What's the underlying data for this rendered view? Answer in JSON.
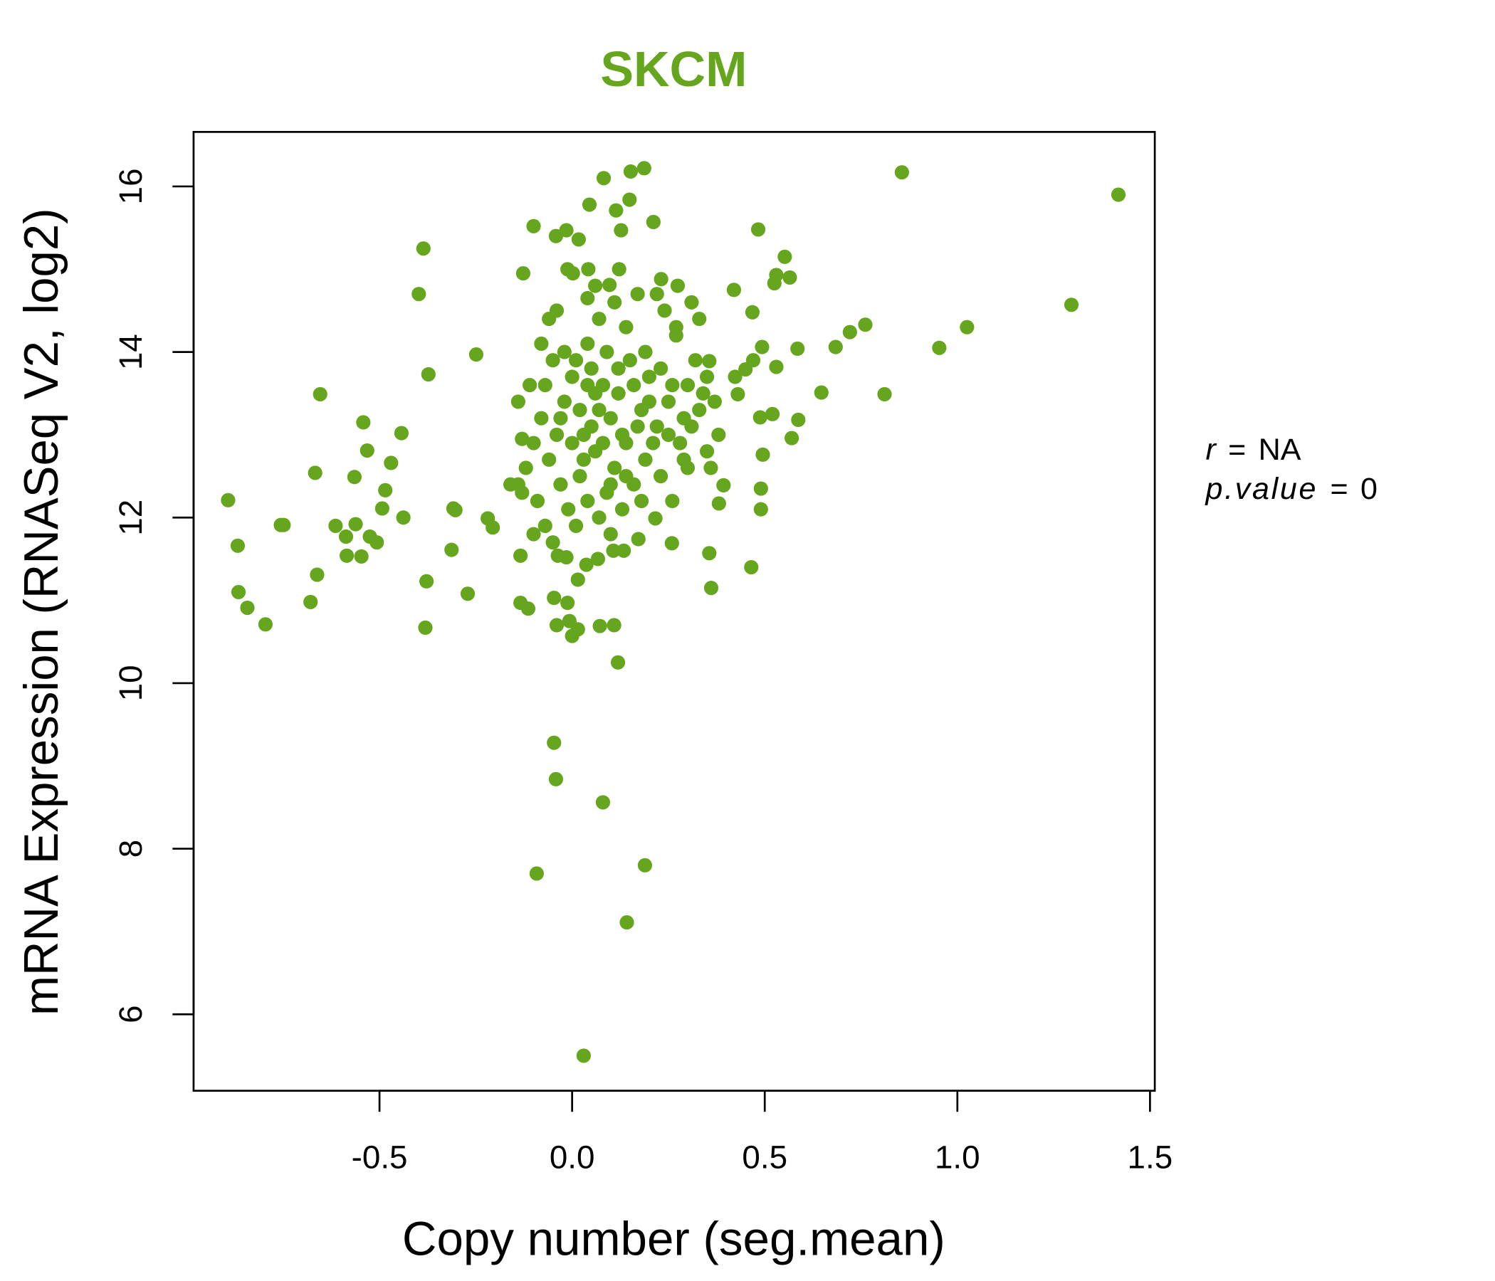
{
  "chart_data": {
    "type": "scatter",
    "title": "SKCM",
    "xlabel": "Copy number (seg.mean)",
    "ylabel": "mRNA Expression (RNASeq V2, log2)",
    "xlim": [
      -0.98,
      1.51
    ],
    "ylim": [
      5.2,
      16.65
    ],
    "xticks": [
      -0.5,
      0.0,
      0.5,
      1.0,
      1.5
    ],
    "xtick_labels": [
      "-0.5",
      "0.0",
      "0.5",
      "1.0",
      "1.5"
    ],
    "yticks": [
      6,
      8,
      10,
      12,
      14,
      16
    ],
    "ytick_labels": [
      "6",
      "8",
      "10",
      "12",
      "14",
      "16"
    ],
    "grid": false,
    "colors": {
      "title": "#66a61e",
      "points": "#66a61e"
    },
    "annotation": {
      "r_label": "r",
      "r_eq": "=",
      "r_value": "NA",
      "p_label": "p.value",
      "p_eq": "=",
      "p_value": "0"
    },
    "points": [
      [
        -0.893,
        12.21
      ],
      [
        -0.868,
        11.66
      ],
      [
        -0.866,
        11.1
      ],
      [
        -0.843,
        10.91
      ],
      [
        -0.796,
        10.71
      ],
      [
        -0.756,
        11.91
      ],
      [
        -0.749,
        11.91
      ],
      [
        -0.679,
        10.98
      ],
      [
        -0.667,
        12.54
      ],
      [
        -0.662,
        11.31
      ],
      [
        -0.654,
        13.49
      ],
      [
        -0.614,
        11.9
      ],
      [
        -0.587,
        11.77
      ],
      [
        -0.585,
        11.54
      ],
      [
        -0.565,
        12.49
      ],
      [
        -0.562,
        11.92
      ],
      [
        -0.547,
        11.53
      ],
      [
        -0.542,
        13.15
      ],
      [
        -0.532,
        12.81
      ],
      [
        -0.525,
        11.77
      ],
      [
        -0.507,
        11.7
      ],
      [
        -0.493,
        12.11
      ],
      [
        -0.485,
        12.33
      ],
      [
        -0.47,
        12.66
      ],
      [
        -0.443,
        13.02
      ],
      [
        -0.438,
        12.0
      ],
      [
        -0.398,
        14.7
      ],
      [
        -0.386,
        15.25
      ],
      [
        -0.381,
        10.67
      ],
      [
        -0.378,
        11.23
      ],
      [
        -0.373,
        13.73
      ],
      [
        -0.313,
        11.61
      ],
      [
        -0.308,
        12.11
      ],
      [
        -0.303,
        12.09
      ],
      [
        -0.271,
        11.08
      ],
      [
        -0.249,
        13.97
      ],
      [
        -0.219,
        11.99
      ],
      [
        -0.206,
        11.88
      ],
      [
        -0.092,
        7.7
      ],
      [
        -0.047,
        9.28
      ],
      [
        -0.042,
        8.84
      ],
      [
        0.08,
        8.56
      ],
      [
        0.189,
        7.8
      ],
      [
        0.142,
        7.11
      ],
      [
        0.03,
        5.5
      ],
      [
        0.119,
        10.25
      ],
      [
        0.856,
        16.17
      ],
      [
        1.418,
        15.9
      ],
      [
        1.296,
        14.57
      ],
      [
        1.025,
        14.3
      ],
      [
        0.953,
        14.05
      ],
      [
        0.811,
        13.49
      ],
      [
        0.761,
        14.33
      ],
      [
        0.721,
        14.24
      ],
      [
        0.684,
        14.06
      ],
      [
        0.647,
        13.51
      ],
      [
        0.585,
        14.04
      ],
      [
        0.587,
        13.18
      ],
      [
        0.57,
        12.96
      ],
      [
        0.552,
        15.15
      ],
      [
        0.565,
        14.9
      ],
      [
        0.53,
        14.93
      ],
      [
        0.525,
        14.83
      ],
      [
        0.52,
        13.25
      ],
      [
        0.53,
        13.82
      ],
      [
        0.493,
        14.06
      ],
      [
        0.488,
        13.21
      ],
      [
        0.495,
        12.76
      ],
      [
        0.49,
        12.35
      ],
      [
        0.49,
        12.1
      ],
      [
        0.483,
        15.48
      ],
      [
        0.465,
        11.4
      ],
      [
        0.468,
        14.48
      ],
      [
        0.47,
        13.9
      ],
      [
        0.45,
        13.79
      ],
      [
        0.42,
        14.75
      ],
      [
        0.423,
        13.7
      ],
      [
        0.43,
        13.49
      ],
      [
        0.393,
        12.39
      ],
      [
        0.381,
        12.17
      ],
      [
        0.361,
        11.15
      ],
      [
        0.356,
        11.57
      ],
      [
        0.356,
        13.89
      ],
      [
        0.259,
        11.69
      ],
      [
        0.231,
        14.88
      ],
      [
        0.274,
        14.8
      ],
      [
        0.211,
        15.57
      ],
      [
        0.187,
        16.22
      ],
      [
        0.152,
        16.18
      ],
      [
        0.149,
        15.84
      ],
      [
        0.082,
        16.1
      ],
      [
        0.045,
        15.78
      ],
      [
        0.114,
        15.71
      ],
      [
        0.127,
        15.47
      ],
      [
        -0.1,
        15.52
      ],
      [
        -0.042,
        15.4
      ],
      [
        -0.015,
        15.47
      ],
      [
        0.017,
        15.36
      ],
      [
        -0.127,
        14.95
      ],
      [
        -0.012,
        15.0
      ],
      [
        0.002,
        14.95
      ],
      [
        0.042,
        15.0
      ],
      [
        0.122,
        15.0
      ],
      [
        0.097,
        14.81
      ],
      [
        0.072,
        10.69
      ],
      [
        0.109,
        10.7
      ],
      [
        -0.047,
        11.03
      ],
      [
        -0.012,
        10.97
      ],
      [
        -0.04,
        10.7
      ],
      [
        -0.007,
        10.75
      ],
      [
        0.0,
        10.57
      ],
      [
        0.015,
        10.65
      ],
      [
        0.015,
        11.25
      ],
      [
        -0.114,
        10.9
      ],
      [
        -0.134,
        10.97
      ],
      [
        -0.134,
        11.54
      ],
      [
        -0.037,
        11.54
      ],
      [
        -0.015,
        11.52
      ],
      [
        0.037,
        11.43
      ],
      [
        0.067,
        11.5
      ],
      [
        0.107,
        11.6
      ],
      [
        0.134,
        11.6
      ],
      [
        0.172,
        11.74
      ],
      [
        0.216,
        11.99
      ],
      [
        0.05,
        13.8
      ],
      [
        0.08,
        13.6
      ],
      [
        0.1,
        13.2
      ],
      [
        0.03,
        13.0
      ],
      [
        0.06,
        12.8
      ],
      [
        0.12,
        13.5
      ],
      [
        0.15,
        13.9
      ],
      [
        0.02,
        12.5
      ],
      [
        0.09,
        12.3
      ],
      [
        0.18,
        13.3
      ],
      [
        0.2,
        13.7
      ],
      [
        0.22,
        13.1
      ],
      [
        0.25,
        13.4
      ],
      [
        0.28,
        12.9
      ],
      [
        0.3,
        13.6
      ],
      [
        0.33,
        13.3
      ],
      [
        0.35,
        12.8
      ],
      [
        0.32,
        13.9
      ],
      [
        0.27,
        14.2
      ],
      [
        0.24,
        14.5
      ],
      [
        0.19,
        14.0
      ],
      [
        0.14,
        14.3
      ],
      [
        0.11,
        14.6
      ],
      [
        0.07,
        14.4
      ],
      [
        0.04,
        14.1
      ],
      [
        0.0,
        13.7
      ],
      [
        -0.02,
        13.4
      ],
      [
        -0.04,
        13.0
      ],
      [
        -0.06,
        12.7
      ],
      [
        -0.03,
        12.4
      ],
      [
        -0.01,
        12.1
      ],
      [
        0.01,
        11.9
      ],
      [
        0.04,
        12.2
      ],
      [
        0.07,
        12.0
      ],
      [
        0.1,
        11.8
      ],
      [
        0.13,
        12.1
      ],
      [
        0.16,
        12.4
      ],
      [
        0.19,
        12.7
      ],
      [
        0.23,
        12.5
      ],
      [
        0.26,
        12.2
      ],
      [
        0.29,
        12.7
      ],
      [
        0.31,
        13.1
      ],
      [
        0.34,
        13.5
      ],
      [
        0.36,
        12.6
      ],
      [
        0.38,
        13.0
      ],
      [
        -0.08,
        13.2
      ],
      [
        -0.1,
        12.9
      ],
      [
        -0.12,
        12.6
      ],
      [
        -0.14,
        12.4
      ],
      [
        -0.16,
        12.4
      ],
      [
        -0.13,
        12.3
      ],
      [
        -0.09,
        12.2
      ],
      [
        -0.07,
        11.9
      ],
      [
        -0.1,
        11.8
      ],
      [
        -0.05,
        11.7
      ],
      [
        -0.11,
        13.6
      ],
      [
        -0.14,
        13.4
      ],
      [
        -0.13,
        12.95
      ],
      [
        -0.08,
        14.1
      ],
      [
        -0.06,
        14.4
      ],
      [
        -0.04,
        14.5
      ],
      [
        -0.02,
        14.0
      ],
      [
        0.02,
        13.3
      ],
      [
        0.05,
        13.1
      ],
      [
        0.08,
        12.9
      ],
      [
        0.11,
        12.6
      ],
      [
        0.14,
        12.9
      ],
      [
        0.17,
        13.1
      ],
      [
        0.2,
        13.4
      ],
      [
        0.23,
        13.8
      ],
      [
        0.26,
        13.6
      ],
      [
        0.29,
        13.2
      ],
      [
        0.12,
        13.8
      ],
      [
        0.09,
        14.0
      ],
      [
        0.06,
        13.5
      ],
      [
        0.03,
        12.7
      ],
      [
        0.0,
        12.9
      ],
      [
        -0.03,
        13.2
      ],
      [
        0.16,
        13.6
      ],
      [
        0.18,
        12.2
      ],
      [
        0.21,
        12.9
      ],
      [
        0.14,
        12.5
      ],
      [
        0.1,
        12.4
      ],
      [
        0.07,
        13.3
      ],
      [
        0.04,
        13.6
      ],
      [
        0.01,
        13.9
      ],
      [
        0.13,
        13.0
      ],
      [
        0.25,
        13.0
      ],
      [
        0.3,
        12.6
      ],
      [
        0.35,
        13.7
      ],
      [
        0.37,
        13.4
      ],
      [
        0.33,
        14.4
      ],
      [
        0.31,
        14.6
      ],
      [
        0.27,
        14.3
      ],
      [
        0.22,
        14.7
      ],
      [
        0.17,
        14.7
      ],
      [
        0.06,
        14.8
      ],
      [
        0.04,
        14.65
      ],
      [
        -0.05,
        13.9
      ],
      [
        -0.07,
        13.6
      ]
    ]
  }
}
